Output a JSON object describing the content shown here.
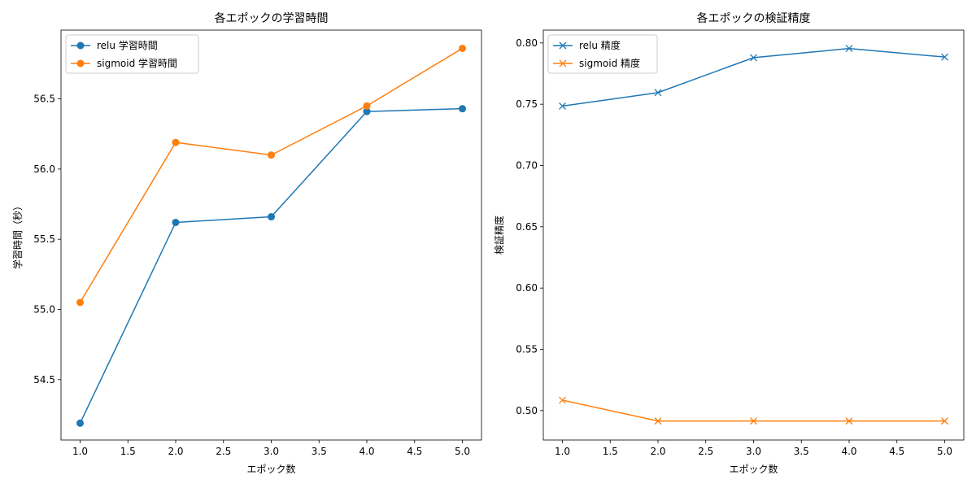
{
  "chart_data": [
    {
      "type": "line",
      "title": "各エポックの学習時間",
      "xlabel": "エポック数",
      "ylabel": "学習時間（秒）",
      "x": [
        1,
        2,
        3,
        4,
        5
      ],
      "xlim": [
        0.8,
        5.2
      ],
      "ylim": [
        54.07,
        56.99
      ],
      "xticks": [
        1.0,
        1.5,
        2.0,
        2.5,
        3.0,
        3.5,
        4.0,
        4.5,
        5.0
      ],
      "xtick_labels": [
        "1.0",
        "1.5",
        "2.0",
        "2.5",
        "3.0",
        "3.5",
        "4.0",
        "4.5",
        "5.0"
      ],
      "yticks": [
        54.5,
        55.0,
        55.5,
        56.0,
        56.5
      ],
      "ytick_labels": [
        "54.5",
        "55.0",
        "55.5",
        "56.0",
        "56.5"
      ],
      "grid": false,
      "legend": "top-left",
      "series": [
        {
          "name": "relu 学習時間",
          "values": [
            54.19,
            55.62,
            55.66,
            56.41,
            56.43
          ],
          "color": "#1f77b4",
          "marker": "circle"
        },
        {
          "name": "sigmoid 学習時間",
          "values": [
            55.05,
            56.19,
            56.1,
            56.45,
            56.86
          ],
          "color": "#ff7f0e",
          "marker": "circle"
        }
      ]
    },
    {
      "type": "line",
      "title": "各エポックの検証精度",
      "xlabel": "エポック数",
      "ylabel": "検証精度",
      "x": [
        1,
        2,
        3,
        4,
        5
      ],
      "xlim": [
        0.8,
        5.2
      ],
      "ylim": [
        0.476,
        0.8105
      ],
      "xticks": [
        1.0,
        1.5,
        2.0,
        2.5,
        3.0,
        3.5,
        4.0,
        4.5,
        5.0
      ],
      "xtick_labels": [
        "1.0",
        "1.5",
        "2.0",
        "2.5",
        "3.0",
        "3.5",
        "4.0",
        "4.5",
        "5.0"
      ],
      "yticks": [
        0.5,
        0.55,
        0.6,
        0.65,
        0.7,
        0.75,
        0.8
      ],
      "ytick_labels": [
        "0.50",
        "0.55",
        "0.60",
        "0.65",
        "0.70",
        "0.75",
        "0.80"
      ],
      "grid": false,
      "legend": "top-left",
      "series": [
        {
          "name": "relu 精度",
          "values": [
            0.7485,
            0.7595,
            0.788,
            0.7955,
            0.7885
          ],
          "color": "#1f77b4",
          "marker": "x"
        },
        {
          "name": "sigmoid 精度",
          "values": [
            0.5085,
            0.4915,
            0.4915,
            0.4915,
            0.4915
          ],
          "color": "#ff7f0e",
          "marker": "x"
        }
      ]
    }
  ]
}
